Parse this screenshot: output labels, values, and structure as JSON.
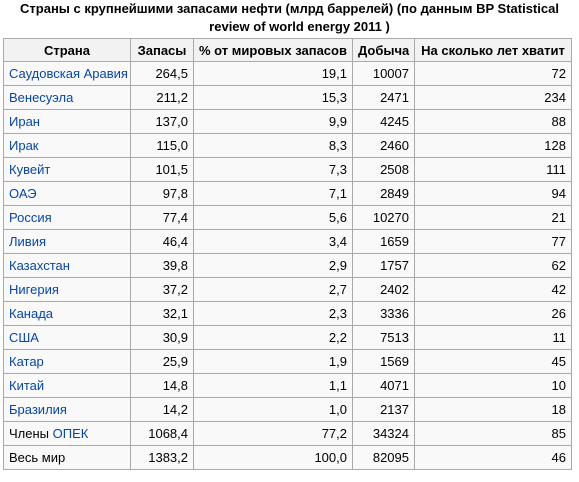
{
  "caption": {
    "line1": "Страны с крупнейшими запасами нефти (млрд баррелей) (по данным BP Statistical",
    "line2": "review of world energy 2011      )"
  },
  "headers": [
    "Страна",
    "Запасы",
    "% от мировых запасов",
    "Добыча",
    "На сколько лет хватит"
  ],
  "rows": [
    {
      "country": "Саудовская Аравия",
      "reserves": "264,5",
      "share": "19,1",
      "production": "10007",
      "years": "72"
    },
    {
      "country": "Венесуэла",
      "reserves": "211,2",
      "share": "15,3",
      "production": "2471",
      "years": "234"
    },
    {
      "country": "Иран",
      "reserves": "137,0",
      "share": "9,9",
      "production": "4245",
      "years": "88"
    },
    {
      "country": "Ирак",
      "reserves": "115,0",
      "share": "8,3",
      "production": "2460",
      "years": "128"
    },
    {
      "country": "Кувейт",
      "reserves": "101,5",
      "share": "7,3",
      "production": "2508",
      "years": "111"
    },
    {
      "country": "ОАЭ",
      "reserves": "97,8",
      "share": "7,1",
      "production": "2849",
      "years": "94"
    },
    {
      "country": "Россия",
      "reserves": "77,4",
      "share": "5,6",
      "production": "10270",
      "years": "21"
    },
    {
      "country": "Ливия",
      "reserves": "46,4",
      "share": "3,4",
      "production": "1659",
      "years": "77"
    },
    {
      "country": "Казахстан",
      "reserves": "39,8",
      "share": "2,9",
      "production": "1757",
      "years": "62"
    },
    {
      "country": "Нигерия",
      "reserves": "37,2",
      "share": "2,7",
      "production": "2402",
      "years": "42"
    },
    {
      "country": "Канада",
      "reserves": "32,1",
      "share": "2,3",
      "production": "3336",
      "years": "26"
    },
    {
      "country": "США",
      "reserves": "30,9",
      "share": "2,2",
      "production": "7513",
      "years": "11"
    },
    {
      "country": "Катар",
      "reserves": "25,9",
      "share": "1,9",
      "production": "1569",
      "years": "45"
    },
    {
      "country": "Китай",
      "reserves": "14,8",
      "share": "1,1",
      "production": "4071",
      "years": "10"
    },
    {
      "country": "Бразилия",
      "reserves": "14,2",
      "share": "1,0",
      "production": "2137",
      "years": "18"
    }
  ],
  "opec_row": {
    "prefix": "Члены ",
    "link": "ОПЕК",
    "reserves": "1068,4",
    "share": "77,2",
    "production": "34324",
    "years": "85"
  },
  "world_row": {
    "label": "Весь мир",
    "reserves": "1383,2",
    "share": "100,0",
    "production": "82095",
    "years": "46"
  },
  "colors": {
    "link": "#0645ad",
    "border": "#aaaaaa",
    "header_bg": "#f2f2f2",
    "cell_bg": "#f9f9f9"
  }
}
